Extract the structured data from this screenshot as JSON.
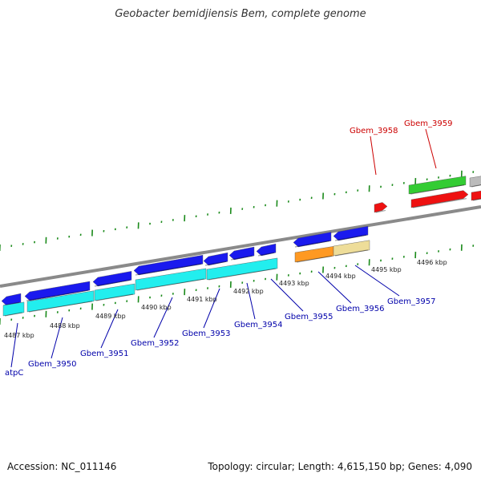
{
  "title": "Geobacter bemidjiensis Bem, complete genome",
  "footer": {
    "accession": "Accession: NC_011146",
    "summary": "Topology: circular; Length: 4,615,150 bp; Genes: 4,090"
  },
  "colors": {
    "backbone": "#8a8a8a",
    "tick": "#1a8a1a",
    "kbp_text": "#222222",
    "forward_label": "#cc0000",
    "reverse_label": "#0000aa",
    "cds_blue": "#1a1aee",
    "rna_cyan": "#22eeee",
    "cds_orange": "#ff9922",
    "cds_tan": "#eedd99",
    "cds_green": "#33cc33",
    "cds_red": "#ee1111",
    "cds_grey": "#bbbbbb"
  },
  "kbp_labels": [
    "4487 kbp",
    "4488 kbp",
    "4489 kbp",
    "4490 kbp",
    "4491 kbp",
    "4492 kbp",
    "4493 kbp",
    "4494 kbp",
    "4495 kbp",
    "4496 kbp"
  ],
  "forward_genes": [
    {
      "name": "Gbem_3958",
      "color_key": "forward_label"
    },
    {
      "name": "Gbem_3959",
      "color_key": "forward_label"
    }
  ],
  "reverse_genes": [
    {
      "name": "atpC"
    },
    {
      "name": "Gbem_3950"
    },
    {
      "name": "Gbem_3951"
    },
    {
      "name": "Gbem_3952"
    },
    {
      "name": "Gbem_3953"
    },
    {
      "name": "Gbem_3954"
    },
    {
      "name": "Gbem_3955"
    },
    {
      "name": "Gbem_3956"
    },
    {
      "name": "Gbem_3957"
    }
  ]
}
